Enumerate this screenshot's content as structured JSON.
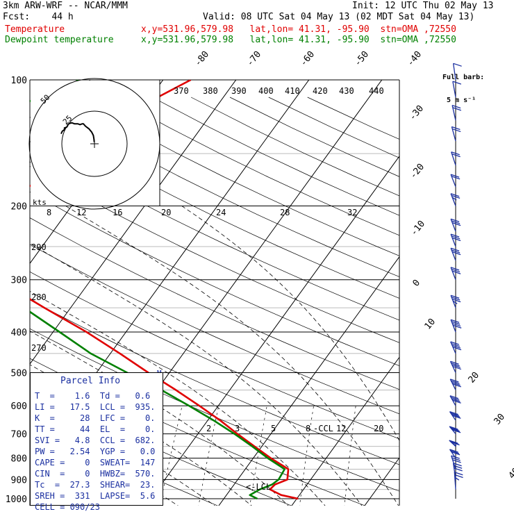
{
  "header": {
    "model": "3km ARW-WRF -- NCAR/MMM",
    "init": "Init: 12 UTC Thu 02 May 13",
    "fcst": "Fcst:    44 h",
    "valid": "Valid: 08 UTC Sat 04 May 13 (02 MDT Sat 04 May 13)",
    "temp_label": "Temperature",
    "temp_info": "x,y=531.96,579.98   lat,lon= 41.31, -95.90  stn=OMA ,72550",
    "dew_label": "Dewpoint temperature",
    "dew_info": "x,y=531.96,579.98   lat,lon= 41.31, -95.90  stn=OMA ,72550"
  },
  "barb_legend": {
    "line1": "Full barb:",
    "line2": "5 m s⁻¹"
  },
  "colors": {
    "temperature": "#e00000",
    "dewpoint": "#008000",
    "barbs": "#1a2fa0",
    "parcel_text": "#1a2fa0"
  },
  "hodograph": {
    "units_label": "kts",
    "ring_labels": [
      "25",
      "50"
    ]
  },
  "parcel_info": {
    "title": "Parcel Info",
    "rows": [
      "T  =    1.6  Td =   0.6",
      "LI =   17.5  LCL =  935.",
      "K  =     28  LFC =    0.",
      "TT =     44  EL  =    0.",
      "SVI =   4.8  CCL =  682.",
      "PW =   2.54  YGP =   0.0",
      "CAPE =    0  SWEAT=  147",
      "CIN  =    0  HWBZ=  570.",
      "Tc  =  27.3  SHEAR=  23.",
      "SREH =  331  LAPSE=  5.6",
      "CELL = 090/23"
    ]
  },
  "chart_data": {
    "type": "skew-t",
    "pressure_axis": {
      "ticks": [
        100,
        200,
        300,
        400,
        500,
        600,
        700,
        800,
        900,
        1000
      ],
      "tick_labels": [
        "100",
        "200",
        "300",
        "400",
        "500",
        "600",
        "700",
        "800",
        "900",
        "1000"
      ],
      "scale": "log",
      "range": [
        100,
        1000
      ]
    },
    "temperature_ticks": [
      -80,
      -70,
      -60,
      -50,
      -40,
      -30,
      -20,
      -10,
      0,
      10,
      20,
      30,
      40
    ],
    "temperature_tick_labels": [
      "-80",
      "-70",
      "-60",
      "-50",
      "-40",
      "-30",
      "-20",
      "-10",
      "0",
      "10",
      "20",
      "30",
      "40"
    ],
    "theta_labels": [
      {
        "value": "370"
      },
      {
        "value": "380"
      },
      {
        "value": "390"
      },
      {
        "value": "400"
      },
      {
        "value": "410"
      },
      {
        "value": "420"
      },
      {
        "value": "430"
      },
      {
        "value": "440"
      },
      {
        "value": "290"
      },
      {
        "value": "280"
      },
      {
        "value": "270"
      }
    ],
    "mixing_ratio_labels": [
      "2",
      "3",
      "5",
      "8",
      "12",
      "20"
    ],
    "thetae_labels": [
      "8",
      "12",
      "16",
      "20",
      "24",
      "28",
      "32"
    ],
    "annotations": {
      "ccl": "-CCL",
      "lcl": "<-LCL",
      "marker": "M"
    },
    "series": [
      {
        "name": "Temperature",
        "points": [
          [
            1000,
            10.2
          ],
          [
            980,
            7.5
          ],
          [
            950,
            5.4
          ],
          [
            925,
            5.6
          ],
          [
            900,
            6.8
          ],
          [
            850,
            5.9
          ],
          [
            800,
            2.4
          ],
          [
            750,
            -1.0
          ],
          [
            700,
            -4.6
          ],
          [
            650,
            -8.3
          ],
          [
            600,
            -12.6
          ],
          [
            550,
            -17.4
          ],
          [
            500,
            -22.9
          ],
          [
            450,
            -28.7
          ],
          [
            400,
            -35.4
          ],
          [
            350,
            -43.6
          ],
          [
            300,
            -52.8
          ],
          [
            270,
            -57.0
          ],
          [
            250,
            -58.2
          ],
          [
            230,
            -56.9
          ],
          [
            200,
            -56.8
          ],
          [
            180,
            -57.8
          ],
          [
            160,
            -54.3
          ],
          [
            140,
            -50.8
          ],
          [
            120,
            -49.2
          ],
          [
            110,
            -49.0
          ],
          [
            100,
            -46.2
          ]
        ]
      },
      {
        "name": "Dewpoint temperature",
        "points": [
          [
            1000,
            4.6
          ],
          [
            980,
            3.2
          ],
          [
            950,
            4.0
          ],
          [
            925,
            5.2
          ],
          [
            900,
            5.6
          ],
          [
            850,
            5.4
          ],
          [
            800,
            2.0
          ],
          [
            750,
            -1.3
          ],
          [
            700,
            -5.0
          ],
          [
            650,
            -9.2
          ],
          [
            600,
            -14.0
          ],
          [
            550,
            -19.4
          ],
          [
            500,
            -25.8
          ],
          [
            450,
            -32.7
          ],
          [
            400,
            -39.1
          ],
          [
            350,
            -46.4
          ],
          [
            300,
            -55.7
          ],
          [
            250,
            -64.2
          ],
          [
            200,
            -70.7
          ],
          [
            180,
            -70.3
          ],
          [
            160,
            -68.4
          ],
          [
            140,
            -68.3
          ],
          [
            125,
            -71.1
          ],
          [
            110,
            -65.1
          ],
          [
            100,
            -61.5
          ]
        ]
      }
    ],
    "wind_barbs": {
      "pressures": [
        100,
        110,
        125,
        140,
        160,
        180,
        200,
        230,
        250,
        270,
        300,
        350,
        400,
        450,
        500,
        550,
        600,
        650,
        700,
        750,
        800,
        850,
        900,
        950
      ],
      "direction_deg": [
        200,
        205,
        210,
        215,
        220,
        225,
        225,
        225,
        225,
        225,
        225,
        225,
        225,
        228,
        230,
        232,
        235,
        240,
        245,
        250,
        240,
        220,
        200,
        190
      ],
      "speed_ms": [
        5,
        7,
        10,
        10,
        10,
        12,
        13,
        15,
        15,
        16,
        17,
        19,
        20,
        22,
        22,
        21,
        20,
        20,
        20,
        18,
        17,
        16,
        15,
        13
      ]
    },
    "hodograph_trace": {
      "u_kts": [
        0.2,
        0.5,
        1,
        2.5,
        5,
        8,
        10,
        11,
        13,
        15,
        17,
        18,
        20,
        21,
        23,
        24,
        24,
        25,
        27,
        27,
        29,
        30
      ],
      "v_kts": [
        -2,
        -6,
        -10,
        -14,
        -18,
        -21,
        -24,
        -24,
        -23,
        -24,
        -24,
        -24,
        -25,
        -25,
        -24,
        -23,
        -22,
        -20,
        -19,
        -17,
        -15,
        -12
      ]
    }
  }
}
